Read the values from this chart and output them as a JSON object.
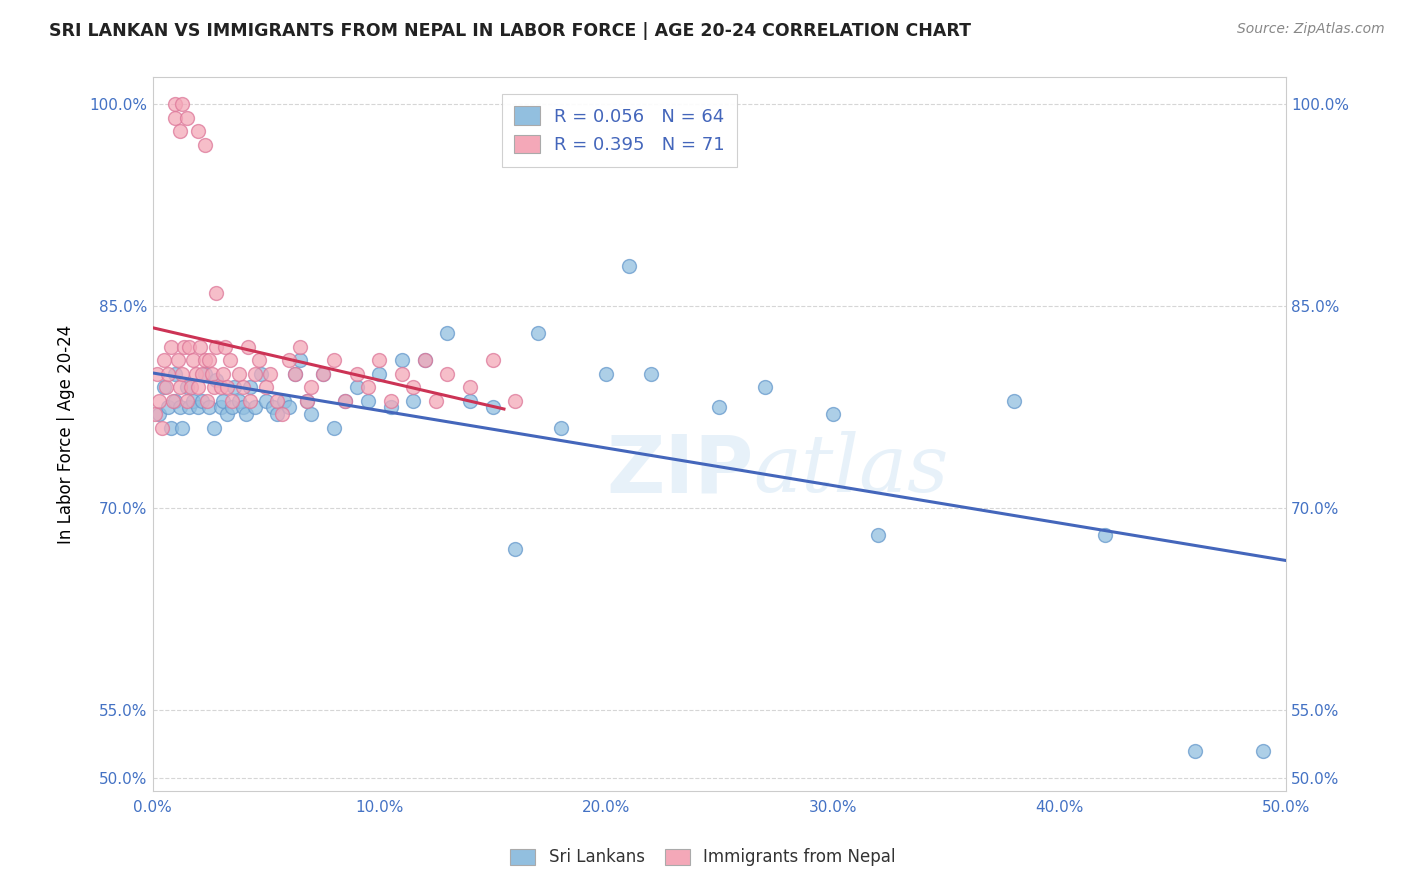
{
  "title": "SRI LANKAN VS IMMIGRANTS FROM NEPAL IN LABOR FORCE | AGE 20-24 CORRELATION CHART",
  "source": "Source: ZipAtlas.com",
  "ylabel": "In Labor Force | Age 20-24",
  "xlim": [
    0.0,
    0.5
  ],
  "ylim": [
    0.49,
    1.02
  ],
  "blue_R": 0.056,
  "blue_N": 64,
  "pink_R": 0.395,
  "pink_N": 71,
  "legend_entries": [
    "Sri Lankans",
    "Immigrants from Nepal"
  ],
  "blue_color": "#92bfdf",
  "pink_color": "#f4a8b8",
  "blue_edge_color": "#6699cc",
  "pink_edge_color": "#dd7799",
  "blue_line_color": "#4466bb",
  "pink_line_color": "#cc3355",
  "watermark": "ZIPatlas",
  "title_color": "#222222",
  "tick_color": "#4472c4",
  "grid_color": "#cccccc",
  "ytick_vals": [
    0.5,
    0.55,
    0.7,
    0.85,
    1.0
  ],
  "ytick_labels": [
    "50.0%",
    "55.0%",
    "70.0%",
    "85.0%",
    "100.0%"
  ],
  "xtick_vals": [
    0.0,
    0.1,
    0.2,
    0.3,
    0.4,
    0.5
  ],
  "xtick_labels": [
    "0.0%",
    "10.0%",
    "20.0%",
    "30.0%",
    "40.0%",
    "50.0%"
  ],
  "blue_scatter_x": [
    0.003,
    0.005,
    0.007,
    0.008,
    0.01,
    0.01,
    0.012,
    0.013,
    0.015,
    0.016,
    0.018,
    0.02,
    0.022,
    0.023,
    0.025,
    0.027,
    0.028,
    0.03,
    0.031,
    0.033,
    0.035,
    0.036,
    0.038,
    0.04,
    0.041,
    0.043,
    0.045,
    0.048,
    0.05,
    0.053,
    0.055,
    0.058,
    0.06,
    0.063,
    0.065,
    0.068,
    0.07,
    0.075,
    0.08,
    0.085,
    0.09,
    0.095,
    0.1,
    0.105,
    0.11,
    0.115,
    0.12,
    0.13,
    0.14,
    0.15,
    0.16,
    0.17,
    0.18,
    0.2,
    0.21,
    0.22,
    0.25,
    0.27,
    0.3,
    0.32,
    0.38,
    0.42,
    0.46,
    0.49
  ],
  "blue_scatter_y": [
    0.77,
    0.79,
    0.775,
    0.76,
    0.8,
    0.78,
    0.775,
    0.76,
    0.79,
    0.775,
    0.78,
    0.775,
    0.78,
    0.8,
    0.775,
    0.76,
    0.795,
    0.775,
    0.78,
    0.77,
    0.775,
    0.79,
    0.78,
    0.775,
    0.77,
    0.79,
    0.775,
    0.8,
    0.78,
    0.775,
    0.77,
    0.78,
    0.775,
    0.8,
    0.81,
    0.78,
    0.77,
    0.8,
    0.76,
    0.78,
    0.79,
    0.78,
    0.8,
    0.775,
    0.81,
    0.78,
    0.81,
    0.83,
    0.78,
    0.775,
    0.67,
    0.83,
    0.76,
    0.8,
    0.88,
    0.8,
    0.775,
    0.79,
    0.77,
    0.68,
    0.78,
    0.68,
    0.52,
    0.52
  ],
  "pink_scatter_x": [
    0.001,
    0.002,
    0.003,
    0.004,
    0.005,
    0.006,
    0.007,
    0.008,
    0.009,
    0.01,
    0.01,
    0.011,
    0.012,
    0.012,
    0.013,
    0.013,
    0.014,
    0.015,
    0.015,
    0.016,
    0.017,
    0.018,
    0.019,
    0.02,
    0.02,
    0.021,
    0.022,
    0.023,
    0.023,
    0.024,
    0.025,
    0.026,
    0.027,
    0.028,
    0.028,
    0.03,
    0.031,
    0.032,
    0.033,
    0.034,
    0.035,
    0.038,
    0.04,
    0.042,
    0.043,
    0.045,
    0.047,
    0.05,
    0.052,
    0.055,
    0.057,
    0.06,
    0.063,
    0.065,
    0.068,
    0.07,
    0.075,
    0.08,
    0.085,
    0.09,
    0.095,
    0.1,
    0.105,
    0.11,
    0.115,
    0.12,
    0.125,
    0.13,
    0.14,
    0.15,
    0.16
  ],
  "pink_scatter_y": [
    0.77,
    0.8,
    0.78,
    0.76,
    0.81,
    0.79,
    0.8,
    0.82,
    0.78,
    1.0,
    0.99,
    0.81,
    0.98,
    0.79,
    1.0,
    0.8,
    0.82,
    0.99,
    0.78,
    0.82,
    0.79,
    0.81,
    0.8,
    0.98,
    0.79,
    0.82,
    0.8,
    0.97,
    0.81,
    0.78,
    0.81,
    0.8,
    0.79,
    0.86,
    0.82,
    0.79,
    0.8,
    0.82,
    0.79,
    0.81,
    0.78,
    0.8,
    0.79,
    0.82,
    0.78,
    0.8,
    0.81,
    0.79,
    0.8,
    0.78,
    0.77,
    0.81,
    0.8,
    0.82,
    0.78,
    0.79,
    0.8,
    0.81,
    0.78,
    0.8,
    0.79,
    0.81,
    0.78,
    0.8,
    0.79,
    0.81,
    0.78,
    0.8,
    0.79,
    0.81,
    0.78
  ],
  "pink_line_x_end": 0.155,
  "blue_line_x_start": 0.0,
  "blue_line_x_end": 0.5
}
